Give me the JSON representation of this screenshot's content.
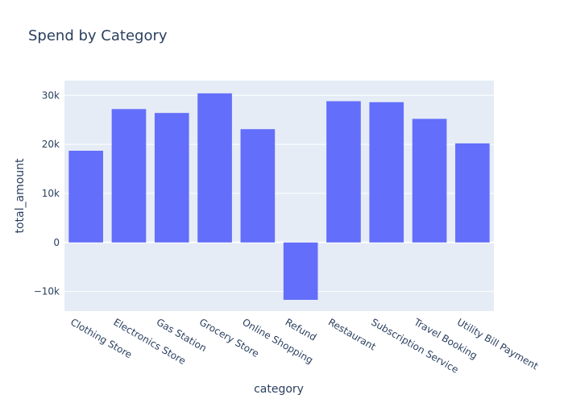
{
  "chart_data": {
    "type": "bar",
    "title": "Spend by Category",
    "xlabel": "category",
    "ylabel": "total_amount",
    "categories": [
      "Clothing Store",
      "Electronics Store",
      "Gas Station",
      "Grocery Store",
      "Online Shopping",
      "Refund",
      "Restaurant",
      "Subscription Service",
      "Travel Booking",
      "Utility Bill Payment"
    ],
    "values": [
      18700,
      27200,
      26400,
      30400,
      23100,
      -11700,
      28800,
      28600,
      25200,
      20200
    ],
    "ylim": [
      -14000,
      33000
    ],
    "yticks": [
      -10000,
      0,
      10000,
      20000,
      30000
    ],
    "ytick_labels": [
      "−10k",
      "0",
      "10k",
      "20k",
      "30k"
    ],
    "bar_color": "#636efa",
    "plot_bg": "#e5ecf6",
    "grid": true
  }
}
